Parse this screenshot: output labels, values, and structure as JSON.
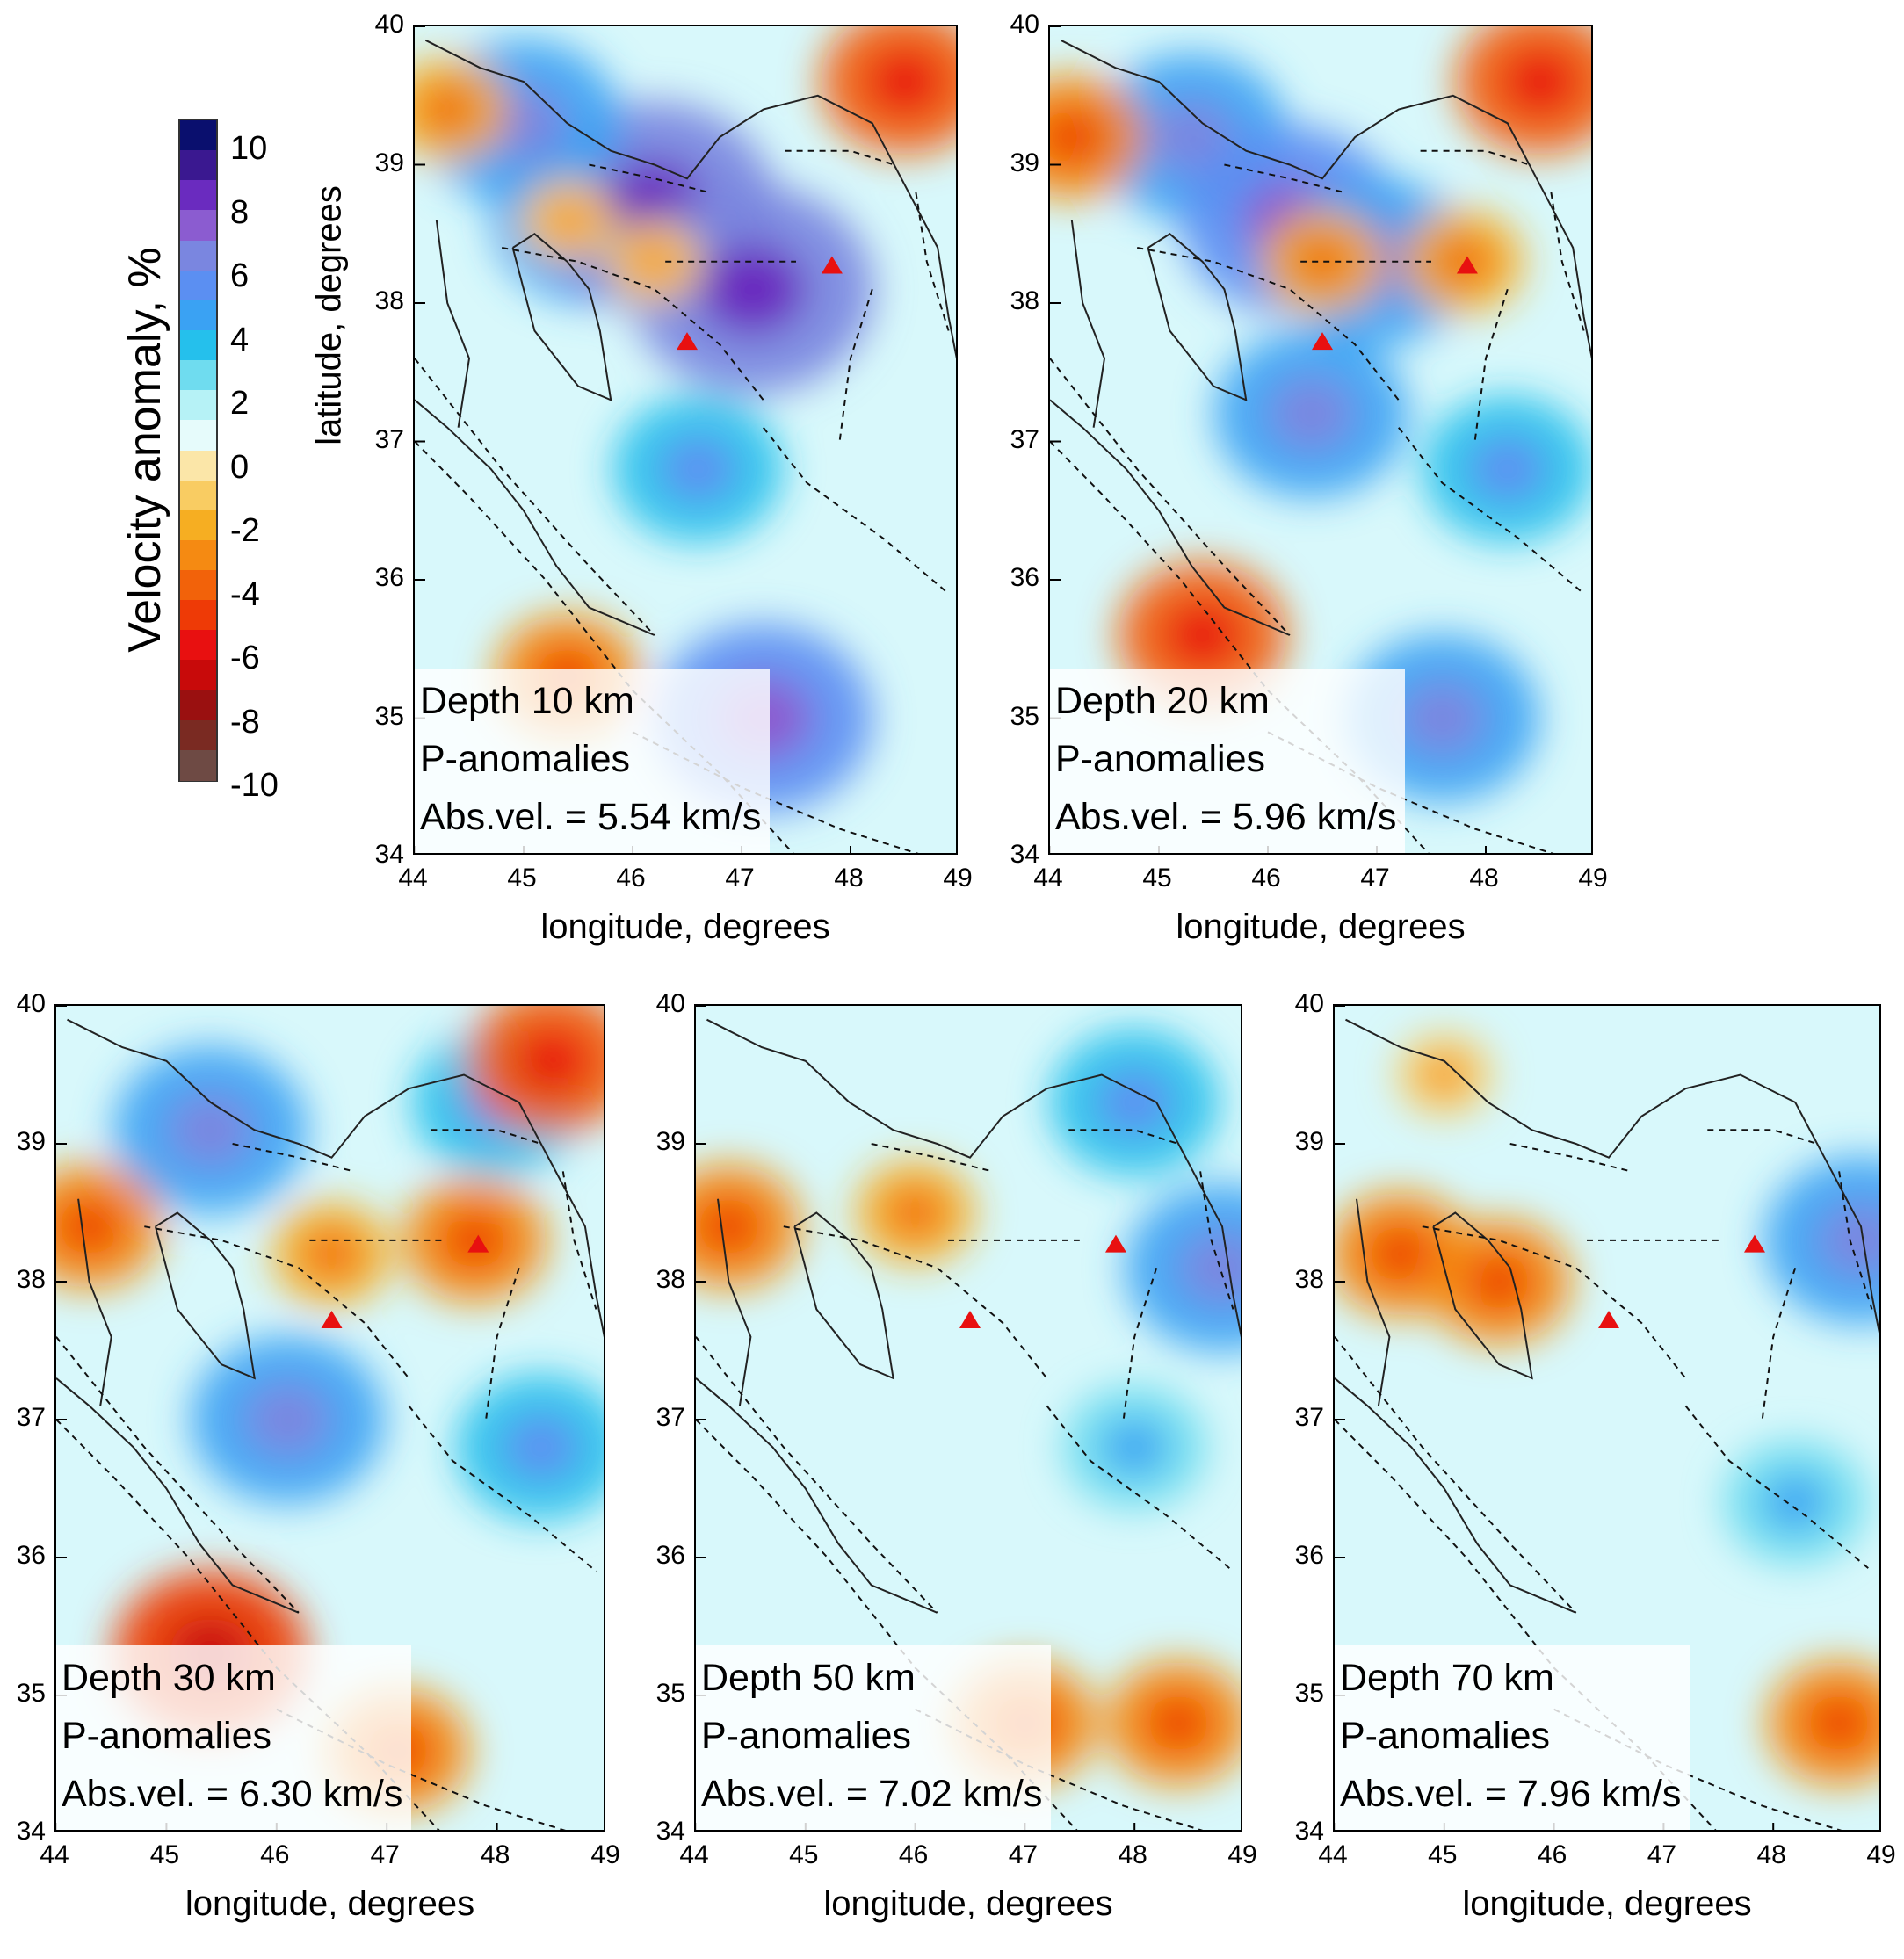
{
  "colorbar": {
    "title": "Velocity anomaly, %",
    "labels": [
      "10",
      "8",
      "6",
      "4",
      "2",
      "0",
      "-2",
      "-4",
      "-6",
      "-8",
      "-10"
    ],
    "colors": [
      "#0a0f6e",
      "#3a1890",
      "#6a2bbf",
      "#8b5cd0",
      "#7a86e0",
      "#5b8ff2",
      "#3aa2f3",
      "#25c0ec",
      "#6fdcef",
      "#b6f2f6",
      "#e6fbfb",
      "#fbe6a8",
      "#f9cc62",
      "#f6ae22",
      "#f58a12",
      "#f2620a",
      "#ee3a06",
      "#e81010",
      "#c80a0a",
      "#9a1010",
      "#7a2a22",
      "#6e4a44"
    ]
  },
  "map_axes": {
    "xlabel": "longitude, degrees",
    "ylabel": "latitude, degrees",
    "x_ticks": [
      "44",
      "45",
      "46",
      "47",
      "48",
      "49"
    ],
    "y_ticks": [
      "40",
      "39",
      "38",
      "37",
      "36",
      "35",
      "34"
    ],
    "lon_range": [
      44,
      49
    ],
    "lat_range": [
      34,
      40
    ]
  },
  "markers": {
    "type": "triangle",
    "color": "#e81010",
    "volcanoes": [
      {
        "lon": 46.5,
        "lat": 37.72
      },
      {
        "lon": 47.83,
        "lat": 38.27
      }
    ]
  },
  "panels": [
    {
      "depth": "Depth 10 km",
      "type": "P-anomalies",
      "absvel": "Abs.vel. = 5.54 km/s",
      "anomalies": [
        {
          "lon": 45.6,
          "lat": 38.6,
          "value": 5
        },
        {
          "lon": 46.2,
          "lat": 38.7,
          "value": 7
        },
        {
          "lon": 47.1,
          "lat": 38.1,
          "value": 7
        },
        {
          "lon": 45.0,
          "lat": 39.3,
          "value": 5
        },
        {
          "lon": 46.6,
          "lat": 36.8,
          "value": 4
        },
        {
          "lon": 47.2,
          "lat": 35.0,
          "value": 6
        },
        {
          "lon": 45.4,
          "lat": 38.6,
          "value": -1
        },
        {
          "lon": 46.2,
          "lat": 38.3,
          "value": -1
        },
        {
          "lon": 48.5,
          "lat": 39.6,
          "value": -4
        },
        {
          "lon": 44.3,
          "lat": 39.4,
          "value": -2
        },
        {
          "lon": 45.4,
          "lat": 35.3,
          "value": -3
        }
      ]
    },
    {
      "depth": "Depth 20 km",
      "type": "P-anomalies",
      "absvel": "Abs.vel. = 5.96 km/s",
      "anomalies": [
        {
          "lon": 45.3,
          "lat": 39.2,
          "value": 5
        },
        {
          "lon": 46.2,
          "lat": 38.6,
          "value": 6
        },
        {
          "lon": 47.0,
          "lat": 38.3,
          "value": 5
        },
        {
          "lon": 46.4,
          "lat": 37.2,
          "value": 5
        },
        {
          "lon": 48.2,
          "lat": 36.8,
          "value": 4
        },
        {
          "lon": 47.6,
          "lat": 35.0,
          "value": 5
        },
        {
          "lon": 46.5,
          "lat": 38.3,
          "value": -2
        },
        {
          "lon": 47.8,
          "lat": 38.3,
          "value": -2
        },
        {
          "lon": 48.5,
          "lat": 39.6,
          "value": -4
        },
        {
          "lon": 44.2,
          "lat": 39.2,
          "value": -3
        },
        {
          "lon": 45.4,
          "lat": 35.6,
          "value": -4
        }
      ]
    },
    {
      "depth": "Depth 30 km",
      "type": "P-anomalies",
      "absvel": "Abs.vel. = 6.30 km/s",
      "anomalies": [
        {
          "lon": 45.4,
          "lat": 39.1,
          "value": 5
        },
        {
          "lon": 48.0,
          "lat": 39.3,
          "value": 4
        },
        {
          "lon": 46.1,
          "lat": 37.0,
          "value": 5
        },
        {
          "lon": 48.4,
          "lat": 36.8,
          "value": 4
        },
        {
          "lon": 47.8,
          "lat": 38.3,
          "value": -3
        },
        {
          "lon": 46.5,
          "lat": 38.2,
          "value": -2
        },
        {
          "lon": 44.3,
          "lat": 38.4,
          "value": -3
        },
        {
          "lon": 45.4,
          "lat": 35.3,
          "value": -5
        },
        {
          "lon": 47.1,
          "lat": 34.6,
          "value": -3
        },
        {
          "lon": 48.5,
          "lat": 39.6,
          "value": -4
        }
      ]
    },
    {
      "depth": "Depth 50 km",
      "type": "P-anomalies",
      "absvel": "Abs.vel. = 7.02 km/s",
      "anomalies": [
        {
          "lon": 48.0,
          "lat": 39.3,
          "value": 4
        },
        {
          "lon": 48.8,
          "lat": 38.1,
          "value": 5
        },
        {
          "lon": 48.0,
          "lat": 36.8,
          "value": 3
        },
        {
          "lon": 44.3,
          "lat": 38.4,
          "value": -3
        },
        {
          "lon": 46.0,
          "lat": 38.5,
          "value": -2
        },
        {
          "lon": 48.4,
          "lat": 34.8,
          "value": -3
        },
        {
          "lon": 47.0,
          "lat": 34.8,
          "value": -3
        }
      ]
    },
    {
      "depth": "Depth 70 km",
      "type": "P-anomalies",
      "absvel": "Abs.vel. = 7.96 km/s",
      "anomalies": [
        {
          "lon": 48.8,
          "lat": 38.3,
          "value": 5
        },
        {
          "lon": 48.2,
          "lat": 36.4,
          "value": 3
        },
        {
          "lon": 44.6,
          "lat": 38.2,
          "value": -3
        },
        {
          "lon": 45.5,
          "lat": 38.0,
          "value": -3
        },
        {
          "lon": 48.6,
          "lat": 34.8,
          "value": -3
        },
        {
          "lon": 45.0,
          "lat": 39.5,
          "value": -1
        }
      ]
    }
  ]
}
